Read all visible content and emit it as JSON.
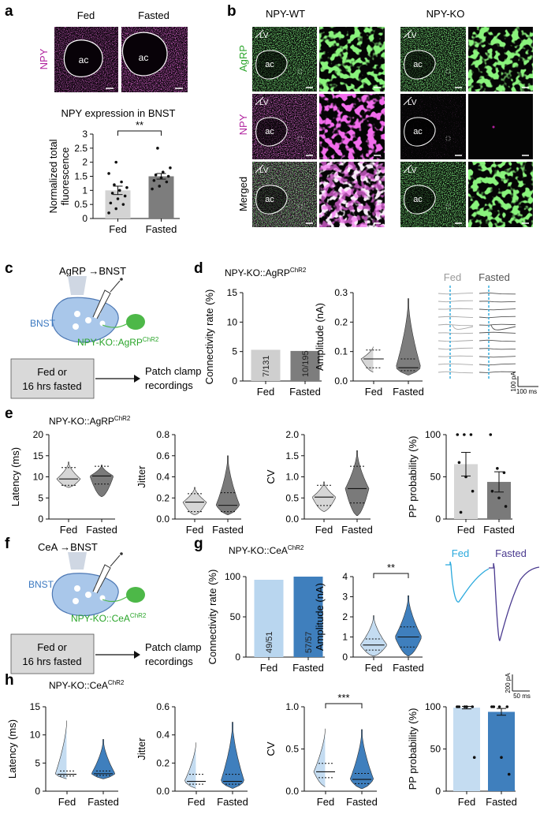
{
  "panel_letters": {
    "a": "a",
    "b": "b",
    "c": "c",
    "d": "d",
    "e": "e",
    "f": "f",
    "g": "g",
    "h": "h"
  },
  "panel_a": {
    "row_label": "NPY",
    "image_labels": [
      "Fed",
      "Fasted"
    ],
    "ac_label": "ac",
    "chart_title": "NPY expression in BNST",
    "significance": "**"
  },
  "panel_b": {
    "group_labels": [
      "NPY-WT",
      "NPY-KO"
    ],
    "row_labels": [
      "AgRP",
      "NPY",
      "Merged"
    ],
    "lv_label": "LV",
    "ac_label": "ac"
  },
  "panel_c": {
    "title": "AgRP →BNST",
    "region_label": "BNST",
    "mouse_label": "NPY-KO::AgRP",
    "mouse_sup": "ChR2",
    "box_line1": "Fed or",
    "box_line2": "16 hrs fasted",
    "outcome_line1": "Patch clamp",
    "outcome_line2": "recordings"
  },
  "panel_d": {
    "title": "NPY-KO::AgRP",
    "title_sup": "ChR2",
    "trace_labels": [
      "Fed",
      "Fasted"
    ],
    "scale_y": "100 pA",
    "scale_x": "100 ms"
  },
  "panel_e": {
    "title": "NPY-KO::AgRP",
    "title_sup": "ChR2"
  },
  "panel_f": {
    "title": "CeA →BNST",
    "region_label": "BNST",
    "mouse_label": "NPY-KO::CeA",
    "mouse_sup": "ChR2",
    "box_line1": "Fed or",
    "box_line2": "16 hrs fasted",
    "outcome_line1": "Patch clamp",
    "outcome_line2": "recordings"
  },
  "panel_g": {
    "title": "NPY-KO::CeA",
    "title_sup": "ChR2",
    "trace_labels": [
      "Fed",
      "Fasted"
    ],
    "scale_y": "200 pA",
    "scale_x": "50 ms"
  },
  "panel_h": {
    "title": "NPY-KO::CeA",
    "title_sup": "ChR2"
  },
  "colors": {
    "fed_gray": "#d0d0d0",
    "fasted_gray": "#7a7a7a",
    "fed_blue": "#b9d6ef",
    "fasted_blue": "#3f7fbd",
    "trace_fed_blue": "#29a9dd",
    "trace_fasted_purple": "#4a3a8f",
    "agrp_green": "#2aa52a",
    "npy_magenta": "#b0219e"
  },
  "chart_data": [
    {
      "id": "a",
      "type": "bar",
      "title": "NPY expression in BNST",
      "categories": [
        "Fed",
        "Fasted"
      ],
      "values": [
        1.0,
        1.5
      ],
      "errors": [
        0.15,
        0.1
      ],
      "ylabel": "Normalized total fluorescence",
      "ylim": [
        0,
        3
      ],
      "yticks": [
        "0",
        "0.5",
        "1",
        "1.5",
        "2",
        "2.5",
        "3"
      ],
      "ytick_values": [
        0,
        0.5,
        1,
        1.5,
        2,
        2.5,
        3
      ],
      "significance": "**",
      "points": [
        [
          0.2,
          0.35,
          0.5,
          0.55,
          0.7,
          0.8,
          0.9,
          1.0,
          1.1,
          1.2,
          1.3,
          1.6,
          2.0
        ],
        [
          1.05,
          1.15,
          1.3,
          1.35,
          1.45,
          1.5,
          1.55,
          1.65,
          1.8,
          2.5
        ]
      ]
    },
    {
      "id": "d1",
      "type": "bar",
      "categories": [
        "Fed",
        "Fasted"
      ],
      "values": [
        5.3,
        5.1
      ],
      "bar_labels": [
        "7/131",
        "10/195"
      ],
      "ylabel": "Connectivity rate (%)",
      "ylim": [
        0,
        15
      ],
      "yticks": [
        "0",
        "5",
        "10",
        "15"
      ],
      "ytick_values": [
        0,
        5,
        10,
        15
      ]
    },
    {
      "id": "d2",
      "type": "violin",
      "categories": [
        "Fed",
        "Fasted"
      ],
      "ylabel": "Amplitude (nA)",
      "ylim": [
        0,
        0.3
      ],
      "yticks": [
        "0.0",
        "0.1",
        "0.2",
        "0.3"
      ],
      "ytick_values": [
        0,
        0.1,
        0.2,
        0.3
      ],
      "min": [
        0.03,
        0.02
      ],
      "max": [
        0.12,
        0.28
      ],
      "median": [
        0.075,
        0.045
      ],
      "q1": [
        0.045,
        0.035
      ],
      "q3": [
        0.105,
        0.075
      ]
    },
    {
      "id": "e1",
      "type": "violin",
      "categories": [
        "Fed",
        "Fasted"
      ],
      "ylabel": "Latency (ms)",
      "ylim": [
        0,
        20
      ],
      "yticks": [
        "0",
        "5",
        "10",
        "15",
        "20"
      ],
      "ytick_values": [
        0,
        5,
        10,
        15,
        20
      ],
      "min": [
        7.5,
        5.3
      ],
      "max": [
        13.5,
        12.8
      ],
      "median": [
        9.5,
        10.2
      ],
      "q1": [
        8.0,
        8.3
      ],
      "q3": [
        12.2,
        12.5
      ]
    },
    {
      "id": "e2",
      "type": "violin",
      "categories": [
        "Fed",
        "Fasted"
      ],
      "ylabel": "Jitter",
      "ylim": [
        0,
        0.8
      ],
      "yticks": [
        "0.0",
        "0.2",
        "0.4",
        "0.6",
        "0.8"
      ],
      "ytick_values": [
        0,
        0.2,
        0.4,
        0.6,
        0.8
      ],
      "min": [
        0.04,
        0.04
      ],
      "max": [
        0.3,
        0.6
      ],
      "median": [
        0.16,
        0.13
      ],
      "q1": [
        0.07,
        0.07
      ],
      "q3": [
        0.24,
        0.25
      ]
    },
    {
      "id": "e3",
      "type": "violin",
      "categories": [
        "Fed",
        "Fasted"
      ],
      "ylabel": "CV",
      "ylim": [
        0,
        2.0
      ],
      "yticks": [
        "0.0",
        "0.5",
        "1.0",
        "1.5",
        "2.0"
      ],
      "ytick_values": [
        0,
        0.5,
        1,
        1.5,
        2
      ],
      "min": [
        0.18,
        0.08
      ],
      "max": [
        0.88,
        1.62
      ],
      "median": [
        0.52,
        0.72
      ],
      "q1": [
        0.32,
        0.38
      ],
      "q3": [
        0.8,
        1.25
      ]
    },
    {
      "id": "e4",
      "type": "bar",
      "categories": [
        "Fed",
        "Fasted"
      ],
      "values": [
        65,
        44
      ],
      "errors": [
        14,
        12
      ],
      "ylabel": "PP probability (%)",
      "ylim": [
        0,
        100
      ],
      "yticks": [
        "0",
        "50",
        "100"
      ],
      "ytick_values": [
        0,
        50,
        100
      ],
      "points": [
        [
          100,
          100,
          100,
          67,
          50,
          33,
          8
        ],
        [
          100,
          60,
          55,
          33,
          25,
          15
        ]
      ]
    },
    {
      "id": "g1",
      "type": "bar",
      "categories": [
        "Fed",
        "Fasted"
      ],
      "values": [
        96.1,
        100
      ],
      "bar_labels": [
        "49/51",
        "57/57"
      ],
      "ylabel": "Connectivity rate (%)",
      "ylim": [
        0,
        100
      ],
      "yticks": [
        "0",
        "50",
        "100"
      ],
      "ytick_values": [
        0,
        50,
        100
      ]
    },
    {
      "id": "g2",
      "type": "violin",
      "categories": [
        "Fed",
        "Fasted"
      ],
      "ylabel": "Amplitude (nA)",
      "ylim": [
        0,
        4
      ],
      "yticks": [
        "0",
        "1",
        "2",
        "3",
        "4"
      ],
      "ytick_values": [
        0,
        1,
        2,
        3,
        4
      ],
      "min": [
        0.05,
        0.05
      ],
      "max": [
        2.05,
        3.05
      ],
      "median": [
        0.6,
        1.0
      ],
      "q1": [
        0.35,
        0.5
      ],
      "q3": [
        0.9,
        1.5
      ],
      "significance": "**"
    },
    {
      "id": "h1",
      "type": "violin",
      "categories": [
        "Fed",
        "Fasted"
      ],
      "ylabel": "Latency (ms)",
      "ylim": [
        0,
        15
      ],
      "yticks": [
        "0",
        "5",
        "10",
        "15"
      ],
      "ytick_values": [
        0,
        5,
        10,
        15
      ],
      "min": [
        2.2,
        2.2
      ],
      "max": [
        13.0,
        9.2
      ],
      "median": [
        3.0,
        3.1
      ],
      "q1": [
        2.7,
        2.8
      ],
      "q3": [
        3.6,
        3.6
      ]
    },
    {
      "id": "h2",
      "type": "violin",
      "categories": [
        "Fed",
        "Fasted"
      ],
      "ylabel": "Jitter",
      "ylim": [
        0,
        0.6
      ],
      "yticks": [
        "0.0",
        "0.2",
        "0.4",
        "0.6"
      ],
      "ytick_values": [
        0,
        0.2,
        0.4,
        0.6
      ],
      "min": [
        0.02,
        0.02
      ],
      "max": [
        0.36,
        0.49
      ],
      "median": [
        0.07,
        0.07
      ],
      "q1": [
        0.05,
        0.05
      ],
      "q3": [
        0.12,
        0.12
      ]
    },
    {
      "id": "h3",
      "type": "violin",
      "categories": [
        "Fed",
        "Fasted"
      ],
      "ylabel": "CV",
      "ylim": [
        0,
        1.0
      ],
      "yticks": [
        "0.0",
        "0.5",
        "1.0"
      ],
      "ytick_values": [
        0,
        0.5,
        1
      ],
      "min": [
        0.05,
        0.03
      ],
      "max": [
        0.77,
        0.73
      ],
      "median": [
        0.23,
        0.14
      ],
      "q1": [
        0.16,
        0.09
      ],
      "q3": [
        0.33,
        0.21
      ],
      "significance": "***"
    },
    {
      "id": "h4",
      "type": "bar",
      "categories": [
        "Fed",
        "Fasted"
      ],
      "values": [
        99,
        94
      ],
      "errors": [
        1.5,
        4
      ],
      "ylabel": "PP probability (%)",
      "ylim": [
        0,
        100
      ],
      "yticks": [
        "0",
        "50",
        "100"
      ],
      "ytick_values": [
        0,
        50,
        100
      ],
      "points": [
        [
          100,
          100,
          100,
          100,
          100,
          40
        ],
        [
          100,
          100,
          100,
          100,
          40,
          20
        ]
      ]
    }
  ]
}
